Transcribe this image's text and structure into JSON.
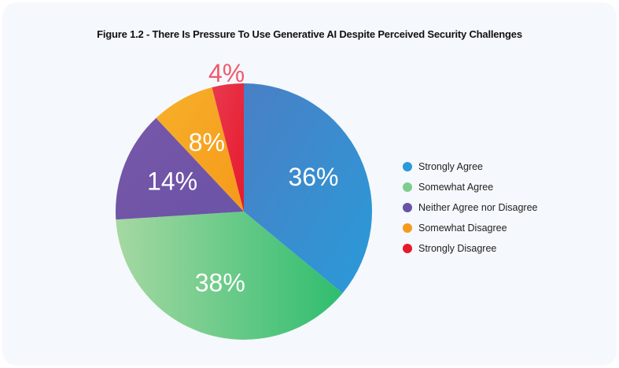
{
  "chart_data": {
    "type": "pie",
    "title": "Figure 1.2 - There Is Pressure To Use Generative AI Despite Perceived Security Challenges",
    "slices": [
      {
        "label": "Strongly Agree",
        "value": 36,
        "display": "36%",
        "color": "#2a9ad8",
        "color2": "#4a7fc5"
      },
      {
        "label": "Somewhat Agree",
        "value": 38,
        "display": "38%",
        "color": "#7dcd8e",
        "color2": "#2fbd6f"
      },
      {
        "label": "Neither Agree nor Disagree",
        "value": 14,
        "display": "14%",
        "color": "#6a53a6",
        "color2": "#7857a8"
      },
      {
        "label": "Somewhat Disagree",
        "value": 8,
        "display": "8%",
        "color": "#f59a1b",
        "color2": "#f7b02a"
      },
      {
        "label": "Strongly Disagree",
        "value": 4,
        "display": "4%",
        "color": "#e8192c",
        "color2": "#e8394f"
      }
    ],
    "legend_position": "right"
  }
}
